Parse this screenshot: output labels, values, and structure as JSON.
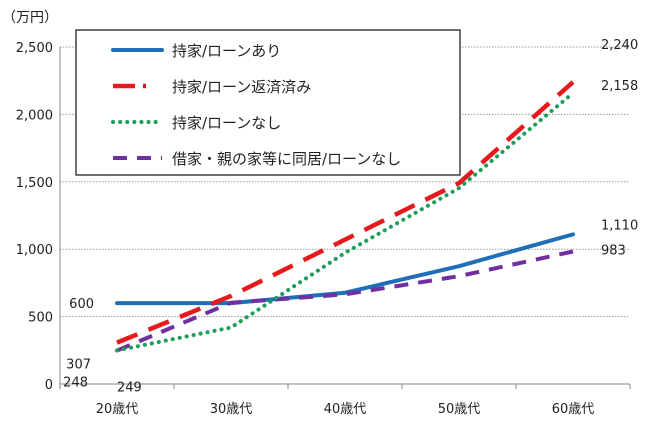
{
  "chart_data": {
    "type": "line",
    "unit_label": "（万円）",
    "categories": [
      "20歳代",
      "30歳代",
      "40歳代",
      "50歳代",
      "60歳代"
    ],
    "ylim": [
      0,
      2500
    ],
    "yticks": [
      0,
      500,
      1000,
      1500,
      2000,
      2500
    ],
    "ytick_labels": [
      "0",
      "500",
      "1,000",
      "1,500",
      "2,000",
      "2,500"
    ],
    "grid": true,
    "legend_placement": "top-left",
    "series": [
      {
        "name": "持家/ローンあり",
        "color": "#1f6fb8",
        "style": "solid",
        "values": [
          600,
          600,
          677,
          874,
          1110
        ]
      },
      {
        "name": "持家/ローン返済済み",
        "color": "#e8191c",
        "style": "dash",
        "values": [
          307,
          653,
          1071,
          1490,
          2240
        ]
      },
      {
        "name": "持家/ローンなし",
        "color": "#1a9e5a",
        "style": "dot",
        "values": [
          249,
          419,
          973,
          1453,
          2158
        ]
      },
      {
        "name": "借家・親の家等に同居/ローンなし",
        "color": "#7030a0",
        "style": "dash2",
        "values": [
          248,
          603,
          665,
          800,
          983
        ]
      }
    ],
    "data_labels": [
      {
        "text": "600",
        "series": 0,
        "index": 0
      },
      {
        "text": "307",
        "series": 1,
        "index": 0
      },
      {
        "text": "248",
        "series": 3,
        "index": 0
      },
      {
        "text": "249",
        "series": 2,
        "index": 0
      },
      {
        "text": "2,240",
        "series": 1,
        "index": 4
      },
      {
        "text": "2,158",
        "series": 2,
        "index": 4
      },
      {
        "text": "1,110",
        "series": 0,
        "index": 4
      },
      {
        "text": "983",
        "series": 3,
        "index": 4
      }
    ]
  }
}
